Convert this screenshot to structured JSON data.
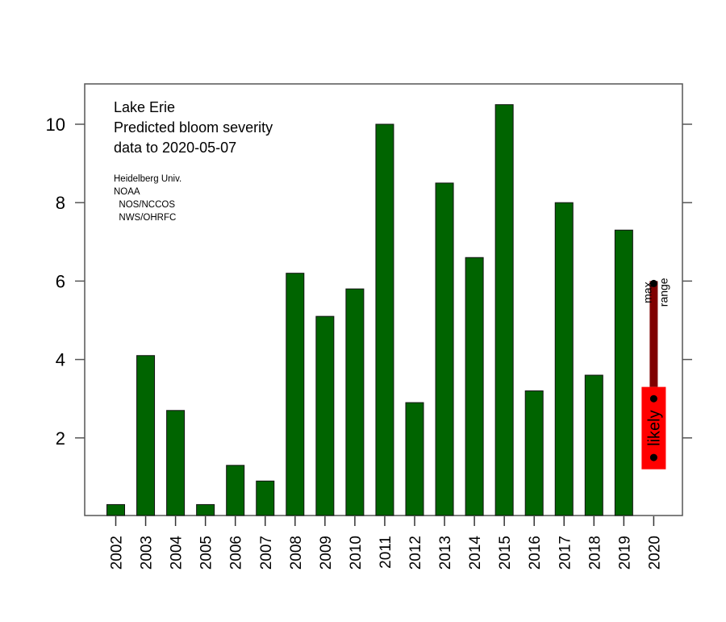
{
  "chart_data": {
    "type": "bar",
    "title_lines": [
      "Lake Erie",
      "Predicted bloom severity",
      "data to 2020-05-07"
    ],
    "credits": [
      "Heidelberg Univ.",
      "NOAA",
      "  NOS/NCCOS",
      "  NWS/OHRFC"
    ],
    "xlabel": "",
    "ylabel": "",
    "ylim": [
      0,
      11
    ],
    "yticks": [
      2,
      4,
      6,
      8,
      10
    ],
    "categories": [
      "2002",
      "2003",
      "2004",
      "2005",
      "2006",
      "2007",
      "2008",
      "2009",
      "2010",
      "2011",
      "2012",
      "2013",
      "2014",
      "2015",
      "2016",
      "2017",
      "2018",
      "2019",
      "2020"
    ],
    "values": [
      0.3,
      4.1,
      2.7,
      0.3,
      1.3,
      0.9,
      6.2,
      5.1,
      5.8,
      10.0,
      2.9,
      8.5,
      6.6,
      10.5,
      3.2,
      8.0,
      3.6,
      7.3,
      null
    ],
    "bar_color": "#006400",
    "forecast": {
      "category": "2020",
      "likely_range": [
        1.2,
        3.3
      ],
      "likely_points": [
        1.5,
        3.0
      ],
      "max": 6.0,
      "likely_label": "likely",
      "max_label": "max",
      "range_label": "range",
      "likely_color": "#ff0000",
      "max_color": "#800000"
    },
    "grid": false,
    "legend": "none"
  }
}
